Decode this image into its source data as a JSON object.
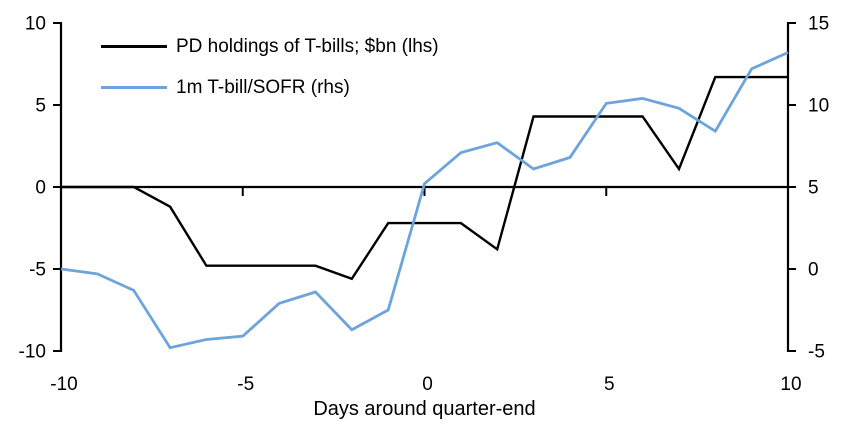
{
  "chart": {
    "background_color": "#ffffff",
    "axis_color": "#000000",
    "legend": [
      {
        "label": "PD holdings of T-bills; $bn (lhs)",
        "color": "#000000"
      },
      {
        "label": "1m T-bill/SOFR (rhs)",
        "color": "#6EA4DC"
      }
    ]
  },
  "chart_data": {
    "type": "line",
    "title": "",
    "xlabel": "Days around quarter-end",
    "ylabel_left": "",
    "ylabel_right": "",
    "grid": false,
    "legend_position": "top-left",
    "x": [
      -10,
      -9,
      -8,
      -7,
      -6,
      -5,
      -4,
      -3,
      -2,
      -1,
      0,
      1,
      2,
      3,
      4,
      5,
      6,
      7,
      8,
      9,
      10
    ],
    "series": [
      {
        "name": "PD holdings of T-bills; $bn (lhs)",
        "axis": "left",
        "color": "#000000",
        "stroke_width": 2.4,
        "values": [
          0,
          0,
          0,
          -1.2,
          -4.8,
          -4.8,
          -4.8,
          -4.8,
          -5.6,
          -2.2,
          -2.2,
          -2.2,
          -3.8,
          4.3,
          4.3,
          4.3,
          4.3,
          1.1,
          6.7,
          6.7,
          6.7
        ]
      },
      {
        "name": "1m T-bill/SOFR (rhs)",
        "axis": "right",
        "color": "#6EA4DC",
        "stroke_width": 2.8,
        "values": [
          0,
          -0.3,
          -1.3,
          -4.8,
          -4.3,
          -4.1,
          -2.1,
          -1.4,
          -3.7,
          -2.5,
          5.2,
          7.1,
          7.7,
          6.1,
          6.8,
          10.1,
          10.4,
          9.8,
          8.4,
          12.2,
          13.2
        ]
      }
    ],
    "axes": {
      "left": {
        "range": [
          -10,
          10
        ],
        "ticks": [
          -10,
          -5,
          0,
          5,
          10
        ],
        "tick_labels": [
          "-10",
          "-5",
          "0",
          "5",
          "10"
        ]
      },
      "right": {
        "range": [
          -5,
          15
        ],
        "ticks": [
          -5,
          0,
          5,
          10,
          15
        ],
        "tick_labels": [
          "-5",
          "0",
          "5",
          "10",
          "15"
        ]
      },
      "x": {
        "range": [
          -10,
          10
        ],
        "ticks": [
          -10,
          -5,
          0,
          5,
          10
        ],
        "tick_labels": [
          "-10",
          "-5",
          "0",
          "5",
          "10"
        ]
      }
    }
  }
}
